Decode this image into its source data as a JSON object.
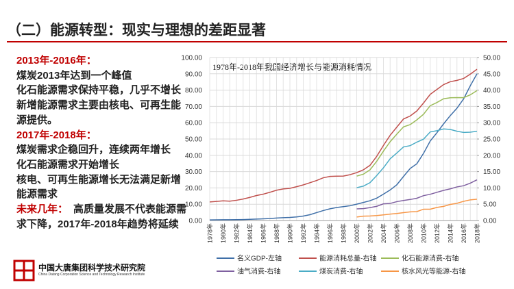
{
  "slide_title": "（二）能源转型：现实与理想的差距显著",
  "left_text": [
    {
      "text": "2013年-2016年：",
      "style": "red"
    },
    {
      "text": "煤炭2013年达到一个峰值",
      "style": "black"
    },
    {
      "text": "化石能源需求保持平稳，几乎不增长",
      "style": "black"
    },
    {
      "text": "新增能源需求主要由核电、可再生能",
      "style": "black"
    },
    {
      "text": "源提供。",
      "style": "black"
    },
    {
      "text": "2017年-2018年：",
      "style": "red"
    },
    {
      "text": "煤炭需求企稳回升，连续两年增长",
      "style": "black"
    },
    {
      "text": "化石能源需求开始增长",
      "style": "black"
    },
    {
      "text": "核电、可再生能源增长无法满足新增",
      "style": "black"
    },
    {
      "text": "能源需求",
      "style": "black"
    }
  ],
  "outlook": {
    "label": "未来几年：",
    "text": "高质量发展不代表能源需求下降，2017年-2018年趋势将延续"
  },
  "logo": {
    "name": "中国大唐集团科学技术研究院",
    "english": "China Datang Corporation Science and Technology Research Institute"
  },
  "chart_data": {
    "type": "line",
    "title": "1978年-2018年我国经济增长与能源消耗情况",
    "categories": [
      "1978年",
      null,
      "1980年",
      null,
      "1982年",
      null,
      "1984年",
      null,
      "1986年",
      null,
      "1988年",
      null,
      "1990年",
      null,
      "1992年",
      null,
      "1994年",
      null,
      "1996年",
      null,
      "1998年",
      null,
      "2000年",
      null,
      "2002年",
      null,
      "2004年",
      null,
      "2006年",
      null,
      "2008年",
      null,
      "2010年",
      null,
      "2012年",
      null,
      "2014年",
      null,
      "2016年",
      null,
      "2018年"
    ],
    "ylim": [
      0,
      100
    ],
    "yticks": [
      {
        "value": 0,
        "label": "0.00"
      },
      {
        "value": 10,
        "label": "10.00"
      },
      {
        "value": 20,
        "label": "20.00"
      },
      {
        "value": 30,
        "label": "30.00"
      },
      {
        "value": 40,
        "label": "40.00"
      },
      {
        "value": 50,
        "label": "50.00"
      },
      {
        "value": 60,
        "label": "60.00"
      },
      {
        "value": 70,
        "label": "70.00"
      },
      {
        "value": 80,
        "label": "80.00"
      },
      {
        "value": 90,
        "label": "90.00"
      },
      {
        "value": 100,
        "label": "100.00"
      }
    ],
    "y2lim": [
      0,
      50
    ],
    "y2ticks": [
      {
        "value": 0,
        "label": "0.00"
      },
      {
        "value": 5,
        "label": "5.00"
      },
      {
        "value": 10,
        "label": "10.00"
      },
      {
        "value": 15,
        "label": "15.00"
      },
      {
        "value": 20,
        "label": "20.00"
      },
      {
        "value": 25,
        "label": "25.00"
      },
      {
        "value": 30,
        "label": "30.00"
      },
      {
        "value": 35,
        "label": "35.00"
      },
      {
        "value": 40,
        "label": "40.00"
      },
      {
        "value": 45,
        "label": "45.00"
      },
      {
        "value": 50,
        "label": "50.00"
      }
    ],
    "grid": true,
    "legend": "bottom",
    "series": [
      {
        "name": "名义GDP-左轴",
        "color": "#3f6fa8",
        "axis": "y",
        "values": [
          0.37,
          0.41,
          0.46,
          0.49,
          0.54,
          0.6,
          0.73,
          0.91,
          1.04,
          1.22,
          1.51,
          1.72,
          1.89,
          2.2,
          2.72,
          3.57,
          4.86,
          6.13,
          7.18,
          7.97,
          8.52,
          9.06,
          10.03,
          11.09,
          12.17,
          13.74,
          16.18,
          18.73,
          21.94,
          27.01,
          31.92,
          34.85,
          41.21,
          48.79,
          53.86,
          59.3,
          64.36,
          68.89,
          74.64,
          82.7,
          90.03
        ]
      },
      {
        "name": "能源消耗总量-右轴",
        "color": "#c0504d",
        "axis": "y2",
        "values": [
          5.71,
          5.86,
          6.03,
          5.94,
          6.21,
          6.6,
          7.09,
          7.67,
          8.08,
          8.66,
          9.3,
          9.69,
          9.87,
          10.38,
          10.92,
          11.6,
          12.27,
          13.12,
          13.52,
          13.59,
          13.62,
          14.06,
          14.7,
          15.55,
          16.96,
          19.71,
          23.03,
          26.14,
          28.65,
          31.14,
          32.06,
          33.61,
          36.06,
          38.7,
          40.21,
          41.69,
          42.58,
          42.99,
          43.58,
          44.9,
          46.4
        ]
      },
      {
        "name": "化石能源消费-右轴",
        "color": "#9bbb59",
        "axis": "y2",
        "values": [
          null,
          null,
          null,
          null,
          null,
          null,
          null,
          null,
          null,
          null,
          null,
          null,
          null,
          null,
          null,
          null,
          null,
          null,
          null,
          null,
          null,
          null,
          13.63,
          14.21,
          15.58,
          18.18,
          21.29,
          24.16,
          26.49,
          28.72,
          29.41,
          30.88,
          32.59,
          35.22,
          36.2,
          37.35,
          37.65,
          37.71,
          37.69,
          38.56,
          39.86
        ]
      },
      {
        "name": "油气消费-右轴",
        "color": "#7f60a0",
        "axis": "y2",
        "values": [
          null,
          null,
          null,
          null,
          null,
          null,
          null,
          null,
          null,
          null,
          null,
          null,
          null,
          null,
          null,
          null,
          null,
          null,
          null,
          null,
          null,
          null,
          3.56,
          3.66,
          3.96,
          4.36,
          5.12,
          5.24,
          5.79,
          6.15,
          6.45,
          6.83,
          7.63,
          8.05,
          8.65,
          9.25,
          9.72,
          10.31,
          10.67,
          11.47,
          12.48
        ]
      },
      {
        "name": "煤炭消费-右轴",
        "color": "#4bacc6",
        "axis": "y2",
        "values": [
          null,
          null,
          null,
          null,
          null,
          null,
          null,
          null,
          null,
          null,
          null,
          null,
          null,
          null,
          null,
          null,
          null,
          null,
          null,
          null,
          null,
          null,
          10.07,
          10.55,
          11.62,
          13.82,
          16.17,
          18.92,
          20.7,
          22.57,
          22.96,
          24.05,
          24.96,
          27.17,
          27.55,
          28.1,
          27.93,
          27.4,
          27.02,
          27.09,
          27.38
        ]
      },
      {
        "name": "核水风光等能源-右轴",
        "color": "#f79646",
        "axis": "y2",
        "values": [
          null,
          null,
          null,
          null,
          null,
          null,
          null,
          null,
          null,
          null,
          null,
          null,
          null,
          null,
          null,
          null,
          null,
          null,
          null,
          null,
          null,
          null,
          1.07,
          1.34,
          1.38,
          1.53,
          1.74,
          1.98,
          2.16,
          2.42,
          2.65,
          2.73,
          3.47,
          3.48,
          4.01,
          4.34,
          4.93,
          5.28,
          5.89,
          6.34,
          6.54
        ]
      }
    ]
  }
}
